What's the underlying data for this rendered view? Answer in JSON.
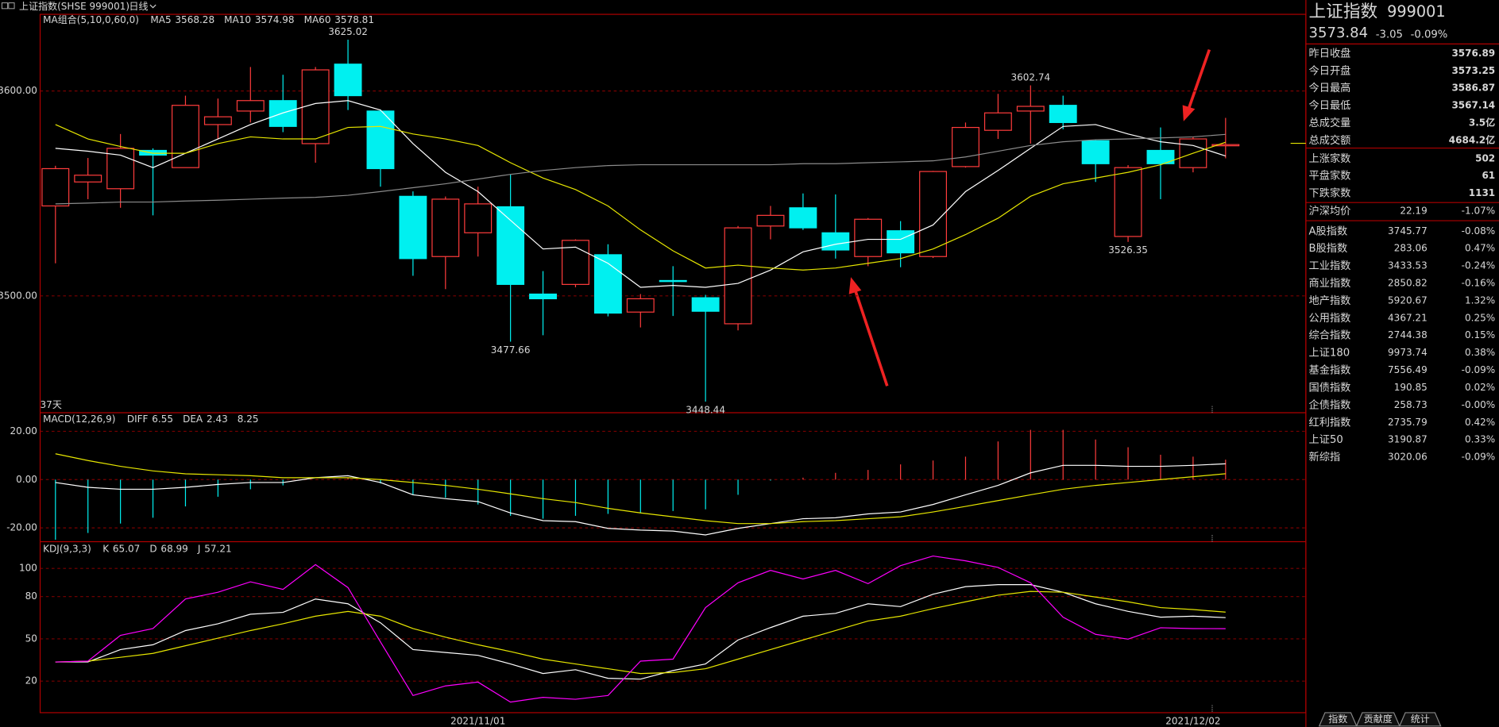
{
  "header": {
    "title": "上证指数(SHSE 999001)",
    "period": "日线"
  },
  "chart_data": [
    {
      "type": "candlestick",
      "legend_title": "MA组合(5,10,0,60,0)",
      "period_label": "37天",
      "categories": [
        null,
        null,
        null,
        null,
        null,
        null,
        null,
        null,
        null,
        null,
        null,
        null,
        null,
        "2021/11/01",
        null,
        null,
        null,
        null,
        null,
        null,
        null,
        null,
        null,
        null,
        null,
        null,
        null,
        null,
        null,
        null,
        null,
        null,
        null,
        null,
        null,
        "2021/12/02",
        null
      ],
      "open": [
        3543.9,
        3555.6,
        3552.3,
        3571.0,
        3562.6,
        3583.6,
        3590.2,
        3595.3,
        3574.3,
        3613.1,
        3590.2,
        3548.6,
        3519.2,
        3530.8,
        3543.5,
        3500.9,
        3505.6,
        3520.1,
        3492.1,
        3507.5,
        3499.1,
        3486.4,
        3534.1,
        3543.0,
        3530.8,
        3519.2,
        3531.8,
        3519.2,
        3563.1,
        3580.8,
        3590.2,
        3593.0,
        3575.7,
        3529.0,
        3571.0,
        3562.6,
        3573.25
      ],
      "high": [
        3563.5,
        3567.3,
        3579.0,
        3572.0,
        3597.7,
        3596.3,
        3611.7,
        3607.9,
        3611.7,
        3625.02,
        3591.0,
        3551.0,
        3548.5,
        3553.3,
        3559.3,
        3512.1,
        3527.6,
        3525.2,
        3500.9,
        3514.5,
        3500.5,
        3534.1,
        3543.9,
        3550.0,
        3549.5,
        3538.0,
        3536.5,
        3561.0,
        3584.6,
        3598.6,
        3602.74,
        3597.7,
        3576.0,
        3563.8,
        3582.2,
        3577.6,
        3586.87
      ],
      "low": [
        3515.9,
        3547.2,
        3543.0,
        3539.3,
        3562.6,
        3576.6,
        3584.6,
        3579.9,
        3565.0,
        3590.7,
        3553.3,
        3509.8,
        3503.3,
        3519.2,
        3477.66,
        3480.8,
        3504.2,
        3490.0,
        3484.6,
        3490.2,
        3448.44,
        3483.2,
        3527.6,
        3532.2,
        3518.2,
        3514.5,
        3514.0,
        3518.5,
        3562.6,
        3576.6,
        3574.3,
        3581.3,
        3555.6,
        3526.35,
        3547.2,
        3560.3,
        3567.14
      ],
      "close": [
        3562.1,
        3558.9,
        3572.0,
        3568.7,
        3593.0,
        3587.4,
        3595.3,
        3582.7,
        3610.3,
        3597.7,
        3562.1,
        3518.2,
        3547.2,
        3544.9,
        3505.6,
        3498.6,
        3527.1,
        3491.6,
        3498.6,
        3507.0,
        3492.5,
        3533.2,
        3539.3,
        3533.2,
        3522.4,
        3537.4,
        3521.0,
        3560.7,
        3582.2,
        3589.3,
        3592.5,
        3584.6,
        3564.5,
        3562.6,
        3564.5,
        3576.6,
        3573.84
      ],
      "up_color": "#ff3c3c",
      "down_color": "#00f0f0",
      "series": [
        {
          "name": "MA5",
          "color": "#ffffff",
          "values": [
            3572.0,
            3570.6,
            3568.7,
            3562.6,
            3569.6,
            3576.6,
            3583.6,
            3589.3,
            3593.9,
            3595.3,
            3590.7,
            3574.3,
            3560.3,
            3550.9,
            3536.9,
            3522.9,
            3523.8,
            3515.9,
            3504.2,
            3505.1,
            3504.2,
            3506.1,
            3512.6,
            3521.5,
            3525.2,
            3527.6,
            3527.6,
            3534.6,
            3550.9,
            3561.2,
            3572.0,
            3582.7,
            3583.6,
            3579.0,
            3575.2,
            3573.4,
            3568.28
          ]
        },
        {
          "name": "MA10",
          "color": "#e6e600",
          "values": [
            3583.6,
            3576.6,
            3572.9,
            3569.6,
            3569.6,
            3574.3,
            3577.6,
            3576.6,
            3576.6,
            3582.2,
            3582.7,
            3579.0,
            3576.6,
            3573.4,
            3565.0,
            3557.5,
            3551.9,
            3543.9,
            3532.2,
            3522.0,
            3513.6,
            3515.0,
            3513.6,
            3512.6,
            3513.6,
            3515.9,
            3518.2,
            3522.9,
            3529.9,
            3537.9,
            3548.6,
            3554.7,
            3557.5,
            3560.3,
            3564.0,
            3569.6,
            3574.98
          ]
        },
        {
          "name": "MA60",
          "color": "#8c8c8c",
          "values": [
            3544.9,
            3545.3,
            3545.8,
            3545.8,
            3546.3,
            3546.7,
            3547.2,
            3547.7,
            3548.1,
            3549.1,
            3550.9,
            3552.8,
            3554.7,
            3557.0,
            3559.3,
            3561.2,
            3562.6,
            3563.6,
            3564.0,
            3564.0,
            3564.0,
            3564.0,
            3564.0,
            3564.5,
            3564.5,
            3565.0,
            3565.4,
            3565.9,
            3567.8,
            3570.6,
            3573.4,
            3575.2,
            3576.2,
            3576.6,
            3577.1,
            3577.6,
            3578.81
          ]
        }
      ],
      "ylim": [
        3443,
        3636
      ],
      "yticks": [
        {
          "value": 3500,
          "label": "3500.00"
        },
        {
          "value": 3600,
          "label": "3600.00"
        }
      ],
      "grid": true
    },
    {
      "type": "macd",
      "legend_title": "MACD(12,26,9)",
      "series": [
        {
          "name": "DIFF",
          "color": "#ffffff",
          "values": [
            -1.2,
            -3.2,
            -4.0,
            -4.0,
            -3.2,
            -2.0,
            -1.2,
            -1.2,
            0.8,
            1.6,
            -1.2,
            -6.3,
            -7.9,
            -9.1,
            -13.8,
            -17.0,
            -17.4,
            -20.2,
            -20.9,
            -21.3,
            -22.9,
            -20.2,
            -18.2,
            -16.2,
            -15.8,
            -14.2,
            -13.4,
            -10.3,
            -6.3,
            -2.4,
            2.8,
            5.9,
            5.9,
            5.5,
            5.5,
            5.9,
            6.55
          ]
        },
        {
          "name": "DEA",
          "color": "#e6e600",
          "values": [
            10.7,
            7.9,
            5.5,
            3.6,
            2.4,
            2.0,
            1.6,
            0.8,
            0.8,
            0.8,
            0,
            -1.2,
            -2.4,
            -4.0,
            -5.9,
            -7.9,
            -9.5,
            -11.9,
            -13.8,
            -15.4,
            -17.0,
            -18.2,
            -18.2,
            -17.4,
            -17.0,
            -16.2,
            -15.4,
            -13.4,
            -11.1,
            -8.7,
            -6.3,
            -4.0,
            -2.4,
            -1.2,
            0,
            1.2,
            2.43
          ]
        }
      ],
      "histogram": {
        "values": [
          -24.9,
          -22.1,
          -18.2,
          -15.8,
          -11.1,
          -7.1,
          -4.0,
          -2.4,
          0,
          0.8,
          -1.6,
          -6.3,
          -7.5,
          -10.3,
          -15.0,
          -16.2,
          -15.0,
          -14.2,
          -13.8,
          -13.0,
          -12.3,
          -6.3,
          -0.4,
          0.8,
          2.8,
          4.0,
          6.3,
          7.9,
          9.5,
          15.8,
          20.6,
          20.6,
          16.6,
          13.4,
          10.3,
          9.5,
          8.25
        ],
        "up_color": "#ff3c3c",
        "down_color": "#00f0f0"
      },
      "ylim": [
        -25.7,
        27.7
      ],
      "yticks": [
        {
          "value": -20,
          "label": "-20.00"
        },
        {
          "value": 0,
          "label": "0.00"
        },
        {
          "value": 20,
          "label": "20.00"
        }
      ],
      "grid": true
    },
    {
      "type": "line",
      "legend_title": "KDJ(9,3,3)",
      "series": [
        {
          "name": "K",
          "color": "#ffffff",
          "values": [
            33.6,
            33.6,
            42.4,
            45.8,
            55.9,
            60.7,
            67.5,
            68.8,
            78.3,
            74.9,
            61.4,
            42.4,
            40.3,
            38.3,
            32.2,
            25.4,
            28.1,
            22.0,
            21.4,
            27.5,
            32.2,
            49.2,
            58.0,
            66.1,
            68.1,
            74.9,
            72.9,
            81.7,
            87.1,
            88.5,
            88.5,
            83.1,
            74.9,
            69.5,
            65.4,
            66.1,
            65.07
          ]
        },
        {
          "name": "D",
          "color": "#e6e600",
          "values": [
            33.6,
            34.2,
            36.9,
            39.7,
            45.1,
            50.5,
            55.9,
            60.7,
            66.1,
            69.5,
            66.1,
            57.3,
            51.2,
            45.8,
            41.0,
            35.6,
            32.2,
            28.8,
            25.4,
            26.1,
            28.8,
            35.6,
            42.4,
            49.2,
            55.9,
            62.7,
            66.1,
            71.5,
            76.3,
            81.0,
            83.7,
            83.1,
            79.7,
            76.3,
            72.2,
            70.8,
            68.99
          ]
        },
        {
          "name": "J",
          "color": "#ff00ff",
          "values": [
            33.6,
            34.2,
            52.5,
            57.3,
            78.3,
            83.1,
            90.5,
            85.1,
            102.7,
            86.4,
            47.8,
            9.8,
            16.6,
            19.3,
            5.1,
            8.5,
            7.1,
            9.8,
            34.2,
            35.6,
            72.2,
            89.8,
            98.6,
            92.5,
            98.6,
            89.2,
            102.0,
            108.8,
            105.4,
            100.7,
            89.8,
            65.4,
            53.2,
            49.8,
            57.9,
            57.3,
            57.21
          ]
        }
      ],
      "ylim": [
        -2.4,
        119
      ],
      "yticks": [
        20,
        50,
        80,
        100
      ],
      "grid": true
    }
  ],
  "quote_panel": {
    "name": "上证指数",
    "code": "999001",
    "price": "3573.84",
    "change": "-3.05",
    "change_pct": "-0.09%",
    "price_color": "#33dd33",
    "stats": [
      {
        "label": "昨日收盘",
        "value": "3576.89",
        "color": "#ffffff"
      },
      {
        "label": "今日开盘",
        "value": "3573.25",
        "color": "#33dd33"
      },
      {
        "label": "今日最高",
        "value": "3586.87",
        "color": "#ff4040"
      },
      {
        "label": "今日最低",
        "value": "3567.14",
        "color": "#33dd33"
      },
      {
        "label": "总成交量",
        "value": "3.5亿",
        "color": "#33dd33"
      },
      {
        "label": "总成交额",
        "value": "4684.2亿",
        "color": "#33dd33"
      }
    ],
    "breadth": [
      {
        "label": "上涨家数",
        "value": "502",
        "color": "#ffffff"
      },
      {
        "label": "平盘家数",
        "value": "61",
        "color": "#ffffff"
      },
      {
        "label": "下跌家数",
        "value": "1131",
        "color": "#ffffff"
      }
    ],
    "average": {
      "label": "沪深均价",
      "value": "22.19",
      "pct": "-1.07%",
      "color": "#33dd33"
    },
    "pct_color": "#ff4040",
    "indices": [
      {
        "name": "A股指数",
        "price": "3745.77",
        "pct": "-0.08%",
        "color": "#33dd33"
      },
      {
        "name": "B股指数",
        "price": "283.06",
        "pct": "0.47%",
        "color": "#ff4040"
      },
      {
        "name": "工业指数",
        "price": "3433.53",
        "pct": "-0.24%",
        "color": "#33dd33"
      },
      {
        "name": "商业指数",
        "price": "2850.82",
        "pct": "-0.16%",
        "color": "#33dd33"
      },
      {
        "name": "地产指数",
        "price": "5920.67",
        "pct": "1.32%",
        "color": "#ff4040"
      },
      {
        "name": "公用指数",
        "price": "4367.21",
        "pct": "0.25%",
        "color": "#ff4040"
      },
      {
        "name": "综合指数",
        "price": "2744.38",
        "pct": "0.15%",
        "color": "#ff4040"
      },
      {
        "name": "上证180",
        "price": "9973.74",
        "pct": "0.38%",
        "color": "#ff4040"
      },
      {
        "name": "基金指数",
        "price": "7556.49",
        "pct": "-0.09%",
        "color": "#33dd33"
      },
      {
        "name": "国债指数",
        "price": "190.85",
        "pct": "0.02%",
        "color": "#ff4040"
      },
      {
        "name": "企债指数",
        "price": "258.73",
        "pct": "-0.00%",
        "color": "#33dd33"
      },
      {
        "name": "红利指数",
        "price": "2735.79",
        "pct": "0.42%",
        "color": "#ff4040"
      },
      {
        "name": "上证50",
        "price": "3190.87",
        "pct": "0.33%",
        "color": "#ff4040"
      },
      {
        "name": "新综指",
        "price": "3020.06",
        "pct": "-0.09%",
        "color": "#33dd33"
      }
    ]
  },
  "tabs": [
    "指数",
    "贡献度",
    "统计"
  ]
}
